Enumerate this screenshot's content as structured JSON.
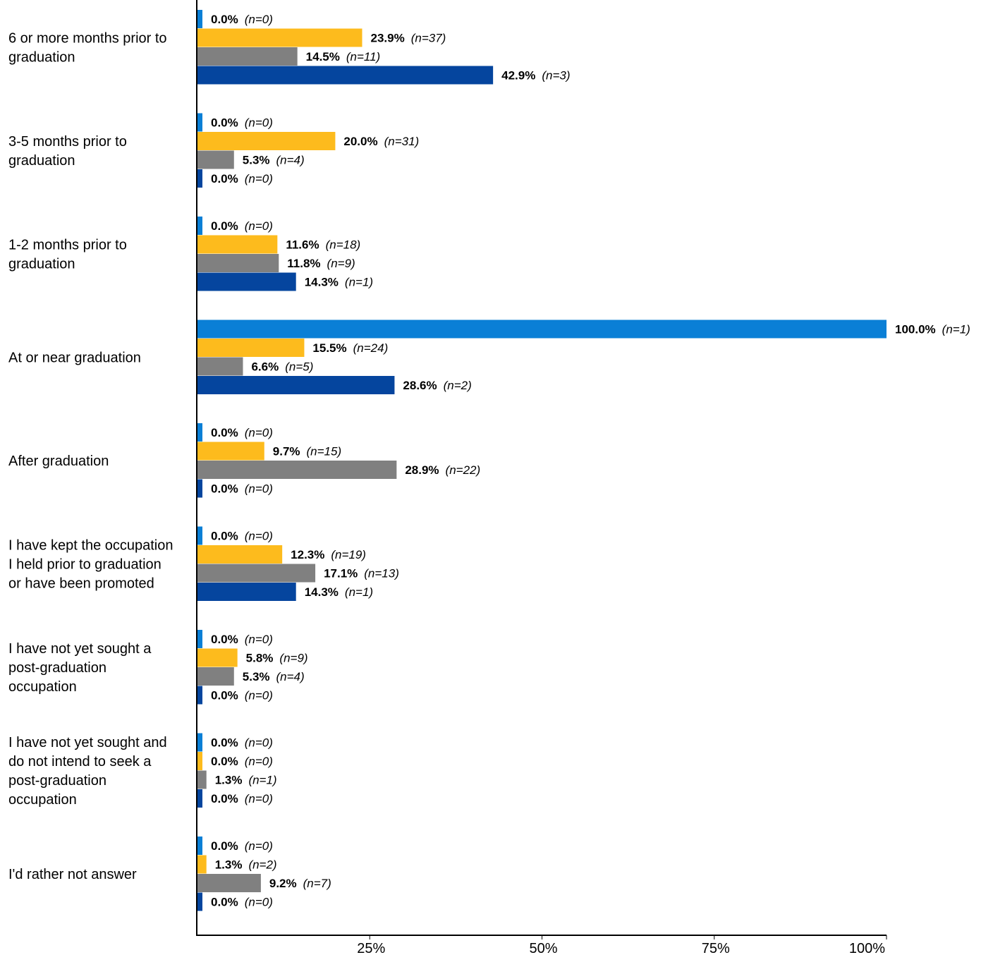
{
  "chart_data": {
    "type": "bar",
    "orientation": "horizontal",
    "categories": [
      [
        "6 or more months prior to",
        "graduation"
      ],
      [
        "3-5 months prior to",
        "graduation"
      ],
      [
        "1-2 months prior to",
        "graduation"
      ],
      [
        "At or near graduation"
      ],
      [
        "After graduation"
      ],
      [
        "I have kept the occupation",
        "I held prior to graduation",
        "or have been promoted"
      ],
      [
        "I have not yet sought a",
        "post-graduation",
        "occupation"
      ],
      [
        "I have not yet sought and",
        "do not intend to seek a",
        "post-graduation",
        "occupation"
      ],
      [
        "I'd rather not answer"
      ]
    ],
    "series": [
      {
        "color": "#0A7FD6",
        "values": [
          0.0,
          0.0,
          0.0,
          100.0,
          0.0,
          0.0,
          0.0,
          0.0,
          0.0
        ],
        "pct_labels": [
          "0.0%",
          "0.0%",
          "0.0%",
          "100.0%",
          "0.0%",
          "0.0%",
          "0.0%",
          "0.0%",
          "0.0%"
        ],
        "n_labels": [
          "(n=0)",
          "(n=0)",
          "(n=0)",
          "(n=1)",
          "(n=0)",
          "(n=0)",
          "(n=0)",
          "(n=0)",
          "(n=0)"
        ]
      },
      {
        "color": "#FDBB1D",
        "values": [
          23.9,
          20.0,
          11.6,
          15.5,
          9.7,
          12.3,
          5.8,
          0.0,
          1.3
        ],
        "pct_labels": [
          "23.9%",
          "20.0%",
          "11.6%",
          "15.5%",
          "9.7%",
          "12.3%",
          "5.8%",
          "0.0%",
          "1.3%"
        ],
        "n_labels": [
          "(n=37)",
          "(n=31)",
          "(n=18)",
          "(n=24)",
          "(n=15)",
          "(n=19)",
          "(n=9)",
          "(n=0)",
          "(n=2)"
        ]
      },
      {
        "color": "#808080",
        "values": [
          14.5,
          5.3,
          11.8,
          6.6,
          28.9,
          17.1,
          5.3,
          1.3,
          9.2
        ],
        "pct_labels": [
          "14.5%",
          "5.3%",
          "11.8%",
          "6.6%",
          "28.9%",
          "17.1%",
          "5.3%",
          "1.3%",
          "9.2%"
        ],
        "n_labels": [
          "(n=11)",
          "(n=4)",
          "(n=9)",
          "(n=5)",
          "(n=22)",
          "(n=13)",
          "(n=4)",
          "(n=1)",
          "(n=7)"
        ]
      },
      {
        "color": "#05459E",
        "values": [
          42.9,
          0.0,
          14.3,
          28.6,
          0.0,
          14.3,
          0.0,
          0.0,
          0.0
        ],
        "pct_labels": [
          "42.9%",
          "0.0%",
          "14.3%",
          "28.6%",
          "0.0%",
          "14.3%",
          "0.0%",
          "0.0%",
          "0.0%"
        ],
        "n_labels": [
          "(n=3)",
          "(n=0)",
          "(n=1)",
          "(n=2)",
          "(n=0)",
          "(n=1)",
          "(n=0)",
          "(n=0)",
          "(n=0)"
        ]
      }
    ],
    "xlim": [
      0,
      100
    ],
    "x_ticks": [
      25,
      50,
      75,
      100
    ],
    "x_tick_labels": [
      "25%",
      "50%",
      "75%",
      "100%"
    ],
    "grid": false,
    "legend": "none"
  }
}
